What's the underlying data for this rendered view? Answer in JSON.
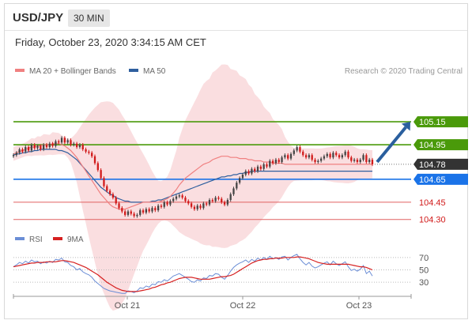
{
  "header": {
    "symbol": "USD/JPY",
    "interval": "30 MIN"
  },
  "datetime": "Friday, October 23, 2020 3:34:15 AM CET",
  "legend": {
    "ma20": {
      "label": "MA 20 + Bollinger Bands",
      "color": "#f08080"
    },
    "ma50": {
      "label": "MA 50",
      "color": "#2e5f9e"
    }
  },
  "credit": "Research © 2020 Trading Central",
  "rsi_legend": {
    "rsi": {
      "label": "RSI",
      "color": "#6b8ed6"
    },
    "ma9": {
      "label": "9MA",
      "color": "#d62020"
    }
  },
  "colors": {
    "up": "#444444",
    "down": "#d11a1a",
    "resistance": "#4a9a0a",
    "support": "#1a73e8",
    "support2": "#e06060",
    "last": "#333333",
    "band": "#fadadd",
    "arrow": "#2a5f9e"
  },
  "chart_data": [
    {
      "type": "candlestick",
      "title": "USD/JPY",
      "x_ticks": [
        "Oct 21",
        "Oct 22",
        "Oct 23"
      ],
      "ylim": [
        104.25,
        105.35
      ],
      "levels": [
        {
          "value": 105.15,
          "label": "105.15",
          "kind": "resistance"
        },
        {
          "value": 104.95,
          "label": "104.95",
          "kind": "resistance"
        },
        {
          "value": 104.78,
          "label": "104.78",
          "kind": "last"
        },
        {
          "value": 104.65,
          "label": "104.65",
          "kind": "pivot"
        },
        {
          "value": 104.45,
          "label": "104.45",
          "kind": "support"
        },
        {
          "value": 104.3,
          "label": "104.30",
          "kind": "support"
        }
      ],
      "close": [
        104.86,
        104.88,
        104.91,
        104.89,
        104.93,
        104.9,
        104.95,
        104.92,
        104.94,
        104.91,
        104.95,
        104.93,
        104.96,
        104.94,
        104.98,
        104.97,
        105.01,
        104.97,
        104.99,
        104.95,
        104.96,
        104.93,
        104.95,
        104.91,
        104.89,
        104.88,
        104.85,
        104.79,
        104.73,
        104.66,
        104.59,
        104.55,
        104.52,
        104.49,
        104.44,
        104.4,
        104.37,
        104.34,
        104.37,
        104.35,
        104.33,
        104.34,
        104.38,
        104.36,
        104.39,
        104.37,
        104.4,
        104.38,
        104.42,
        104.41,
        104.45,
        104.43,
        104.46,
        104.48,
        104.5,
        104.51,
        104.49,
        104.46,
        104.44,
        104.41,
        104.39,
        104.42,
        104.4,
        104.44,
        104.43,
        104.47,
        104.46,
        104.49,
        104.48,
        104.45,
        104.43,
        104.47,
        104.52,
        104.57,
        104.62,
        104.66,
        104.69,
        104.72,
        104.7,
        104.74,
        104.72,
        104.76,
        104.74,
        104.78,
        104.76,
        104.81,
        104.79,
        104.82,
        104.8,
        104.84,
        104.86,
        104.83,
        104.87,
        104.9,
        104.93,
        104.89,
        104.86,
        104.84,
        104.86,
        104.82,
        104.8,
        104.81,
        104.83,
        104.85,
        104.87,
        104.84,
        104.88,
        104.86,
        104.84,
        104.86,
        104.89,
        104.84,
        104.81,
        104.82,
        104.8,
        104.82,
        104.86,
        104.8,
        104.82,
        104.78
      ],
      "ma20": [
        104.87,
        104.88,
        104.89,
        104.9,
        104.91,
        104.92,
        104.93,
        104.93,
        104.94,
        104.94,
        104.95,
        104.95,
        104.95,
        104.96,
        104.96,
        104.96,
        104.95,
        104.94,
        104.92,
        104.9,
        104.87,
        104.84,
        104.8,
        104.76,
        104.72,
        104.68,
        104.64,
        104.6,
        104.56,
        104.52,
        104.49,
        104.46,
        104.43,
        104.41,
        104.4,
        104.39,
        104.39,
        104.39,
        104.4,
        104.41,
        104.42,
        104.43,
        104.44,
        104.45,
        104.45,
        104.45,
        104.45,
        104.45,
        104.45,
        104.46,
        104.47,
        104.48,
        104.5,
        104.53,
        104.56,
        104.6,
        104.63,
        104.66,
        104.68,
        104.7,
        104.72,
        104.74,
        104.76,
        104.78,
        104.79,
        104.8,
        104.82,
        104.83,
        104.84,
        104.85,
        104.85,
        104.85,
        104.84,
        104.84,
        104.84,
        104.83,
        104.83,
        104.83,
        104.82,
        104.82,
        104.81,
        104.81,
        104.81,
        104.8,
        104.8,
        104.8,
        104.79,
        104.79,
        104.79,
        104.79,
        104.78,
        104.78,
        104.78,
        104.78,
        104.78,
        104.78,
        104.78,
        104.78,
        104.78,
        104.78,
        104.78,
        104.78,
        104.78,
        104.78,
        104.78,
        104.78,
        104.78,
        104.78,
        104.78,
        104.78,
        104.78,
        104.78,
        104.78,
        104.78,
        104.78,
        104.78,
        104.78,
        104.78,
        104.78,
        104.78
      ],
      "ma50": [
        104.86,
        104.87,
        104.87,
        104.88,
        104.88,
        104.89,
        104.89,
        104.9,
        104.9,
        104.91,
        104.91,
        104.91,
        104.91,
        104.91,
        104.91,
        104.9,
        104.9,
        104.89,
        104.88,
        104.86,
        104.84,
        104.82,
        104.79,
        104.76,
        104.73,
        104.7,
        104.67,
        104.64,
        104.61,
        104.58,
        104.56,
        104.54,
        104.52,
        104.51,
        104.49,
        104.48,
        104.47,
        104.46,
        104.46,
        104.45,
        104.45,
        104.45,
        104.45,
        104.45,
        104.45,
        104.45,
        104.46,
        104.46,
        104.47,
        104.47,
        104.48,
        104.49,
        104.5,
        104.51,
        104.52,
        104.53,
        104.54,
        104.55,
        104.56,
        104.57,
        104.58,
        104.59,
        104.6,
        104.61,
        104.62,
        104.63,
        104.64,
        104.65,
        104.66,
        104.67,
        104.67,
        104.68,
        104.68,
        104.69,
        104.69,
        104.7,
        104.7,
        104.71,
        104.71,
        104.72,
        104.72,
        104.72,
        104.72,
        104.72,
        104.72,
        104.72,
        104.72,
        104.72,
        104.72,
        104.72,
        104.72,
        104.72,
        104.72,
        104.72,
        104.72,
        104.72,
        104.72,
        104.72,
        104.72,
        104.72,
        104.72,
        104.72,
        104.72,
        104.72,
        104.72,
        104.72,
        104.72,
        104.72,
        104.72,
        104.72,
        104.72,
        104.72,
        104.72,
        104.72,
        104.72,
        104.72,
        104.72,
        104.72,
        104.72,
        104.72
      ],
      "forecast_arrow": {
        "from": 104.8,
        "to": 105.15
      }
    },
    {
      "type": "line",
      "title": "RSI",
      "ylim": [
        20,
        80
      ],
      "y_ticks": [
        70,
        50,
        30
      ],
      "rsi": [
        55,
        58,
        62,
        60,
        64,
        61,
        66,
        63,
        64,
        60,
        63,
        61,
        64,
        62,
        67,
        66,
        69,
        63,
        62,
        57,
        55,
        50,
        52,
        47,
        44,
        42,
        38,
        32,
        28,
        24,
        20,
        18,
        16,
        15,
        14,
        13,
        12,
        12,
        16,
        15,
        13,
        16,
        21,
        20,
        24,
        22,
        27,
        26,
        31,
        30,
        34,
        32,
        36,
        40,
        42,
        44,
        41,
        38,
        35,
        31,
        30,
        34,
        32,
        37,
        36,
        41,
        40,
        44,
        43,
        38,
        35,
        41,
        48,
        54,
        58,
        61,
        63,
        66,
        62,
        67,
        64,
        69,
        66,
        70,
        67,
        72,
        68,
        70,
        67,
        71,
        72,
        66,
        70,
        73,
        75,
        68,
        62,
        58,
        62,
        56,
        53,
        55,
        58,
        61,
        63,
        58,
        64,
        60,
        57,
        60,
        63,
        55,
        49,
        51,
        48,
        51,
        57,
        44,
        48,
        40
      ],
      "ma9": [
        55,
        56,
        57,
        58,
        59,
        60,
        61,
        61,
        62,
        62,
        62,
        63,
        63,
        63,
        63,
        64,
        65,
        65,
        64,
        63,
        62,
        60,
        58,
        56,
        54,
        51,
        48,
        45,
        42,
        38,
        34,
        30,
        27,
        24,
        21,
        19,
        17,
        16,
        15,
        15,
        15,
        15,
        16,
        17,
        18,
        19,
        21,
        22,
        24,
        26,
        27,
        29,
        30,
        32,
        34,
        36,
        37,
        38,
        38,
        38,
        37,
        36,
        35,
        35,
        35,
        35,
        36,
        37,
        38,
        39,
        39,
        40,
        41,
        43,
        46,
        49,
        52,
        55,
        58,
        61,
        63,
        65,
        66,
        67,
        67,
        68,
        68,
        69,
        69,
        69,
        70,
        70,
        70,
        70,
        71,
        71,
        70,
        69,
        68,
        66,
        64,
        62,
        61,
        60,
        59,
        59,
        59,
        59,
        59,
        59,
        59,
        59,
        58,
        57,
        56,
        55,
        55,
        54,
        52,
        50
      ]
    }
  ]
}
